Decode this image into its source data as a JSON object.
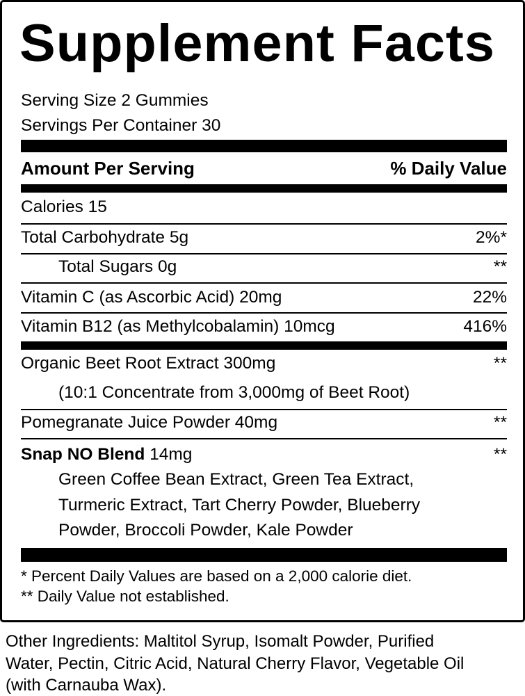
{
  "title": "Supplement Facts",
  "serving_size": "Serving Size 2 Gummies",
  "servings_per_container": "Servings Per Container 30",
  "header": {
    "amount": "Amount Per Serving",
    "dv": "% Daily Value"
  },
  "rows": [
    {
      "label": "Calories 15",
      "dv": ""
    },
    {
      "label": "Total Carbohydrate 5g",
      "dv": "2%*"
    },
    {
      "label": "Total Sugars 0g",
      "dv": "**"
    },
    {
      "label": "Vitamin C (as Ascorbic Acid) 20mg",
      "dv": "22%"
    },
    {
      "label": "Vitamin B12 (as Methylcobalamin) 10mcg",
      "dv": "416%"
    },
    {
      "label": "Organic Beet Root Extract 300mg",
      "dv": "**",
      "sub": "(10:1 Concentrate from 3,000mg of Beet Root)"
    },
    {
      "label": "Pomegranate Juice Powder 40mg",
      "dv": "**"
    }
  ],
  "blend": {
    "name": "Snap NO Blend",
    "amount": " 14mg",
    "dv": "**",
    "ingredients": [
      "Green Coffee Bean Extract, Green Tea Extract,",
      "Turmeric Extract, Tart Cherry Powder, Blueberry",
      "Powder, Broccoli Powder, Kale Powder"
    ]
  },
  "footnotes": [
    "* Percent Daily Values are based on a 2,000 calorie diet.",
    "** Daily Value not established."
  ],
  "other_ingredients": [
    "Other Ingredients: Maltitol Syrup, Isomalt Powder, Purified",
    "Water, Pectin, Citric Acid, Natural Cherry Flavor, Vegetable Oil",
    "(with Carnauba Wax)."
  ]
}
